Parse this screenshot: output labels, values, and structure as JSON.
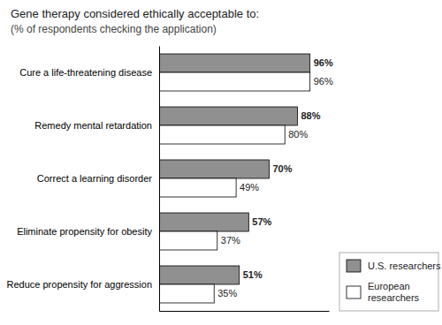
{
  "chart_data": {
    "type": "bar",
    "orientation": "horizontal",
    "title": "Gene therapy considered ethically acceptable to:",
    "subtitle": "(% of respondents checking the application)",
    "categories": [
      "Cure a life-threatening disease",
      "Remedy mental retardation",
      "Correct a learning disorder",
      "Eliminate propensity for obesity",
      "Reduce propensity for aggression"
    ],
    "series": [
      {
        "name": "U.S. researchers",
        "color": "#909090",
        "values": [
          96,
          88,
          70,
          57,
          51
        ],
        "value_labels": [
          "96%",
          "88%",
          "70%",
          "57%",
          "51%"
        ]
      },
      {
        "name": "European\nresearchers",
        "color": "#ffffff",
        "values": [
          96,
          80,
          49,
          37,
          35
        ],
        "value_labels": [
          "96%",
          "80%",
          "49%",
          "37%",
          "35%"
        ]
      }
    ],
    "xlim": [
      0,
      108
    ],
    "tick_labels": "y",
    "grid": false,
    "data_labels": true,
    "legend": "lower right"
  }
}
